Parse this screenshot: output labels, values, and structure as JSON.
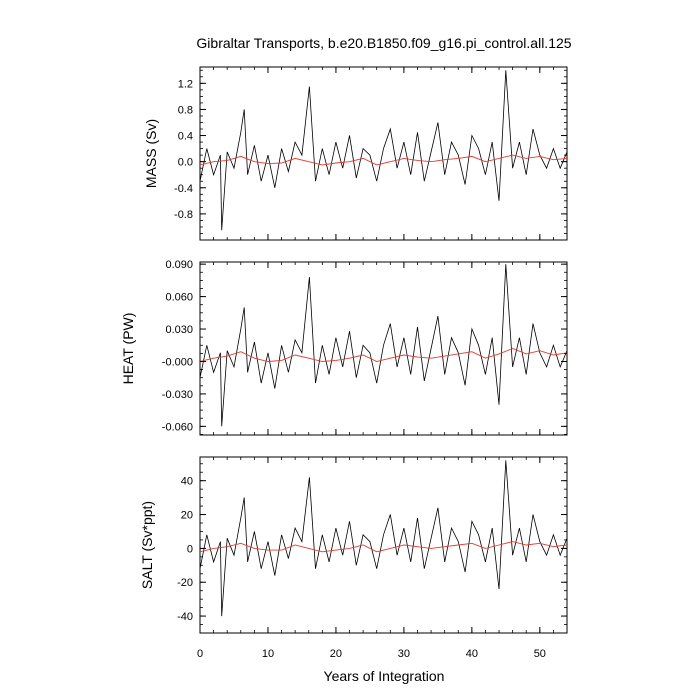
{
  "title": "Gibraltar Transports, b.e20.B1850.f09_g16.pi_control.all.125",
  "xlabel": "Years of Integration",
  "chart_data": [
    {
      "type": "line",
      "ylabel": "MASS (Sv)",
      "xlim": [
        0,
        54
      ],
      "ylim": [
        -1.2,
        1.45
      ],
      "xticks": [
        0,
        10,
        20,
        30,
        40,
        50
      ],
      "yticks": [
        1.2,
        0.8,
        0.4,
        0.0,
        -0.4,
        -0.8
      ],
      "ytick_labels": [
        "1.2",
        "0.8",
        "0.4",
        "0.0",
        "-0.4",
        "-0.8"
      ],
      "series": [
        {
          "role": "monthly",
          "color": "#000000",
          "x": [
            0.0,
            1.0,
            2.0,
            3.0,
            3.2,
            4.0,
            5.0,
            6.0,
            6.5,
            7.0,
            8.0,
            9.0,
            10.0,
            11.0,
            12.0,
            13.0,
            14.0,
            15.0,
            16.1,
            17.0,
            18.0,
            19.0,
            20.0,
            21.0,
            22.0,
            23.0,
            24.0,
            25.0,
            26.0,
            27.0,
            28.0,
            29.0,
            30.0,
            31.0,
            32.0,
            33.0,
            34.0,
            35.0,
            36.0,
            37.0,
            38.0,
            39.0,
            40.0,
            41.0,
            42.0,
            43.0,
            44.0,
            45.0,
            46.0,
            47.0,
            48.0,
            49.0,
            50.0,
            51.0,
            52.0,
            53.0,
            54.0
          ],
          "y": [
            -0.3,
            0.2,
            -0.2,
            0.1,
            -1.05,
            0.15,
            -0.1,
            0.45,
            0.8,
            -0.2,
            0.25,
            -0.3,
            0.1,
            -0.4,
            0.2,
            -0.15,
            0.3,
            0.1,
            1.15,
            -0.3,
            0.2,
            -0.2,
            0.3,
            -0.1,
            0.4,
            -0.25,
            0.2,
            0.1,
            -0.3,
            0.2,
            0.5,
            -0.1,
            0.3,
            -0.2,
            0.45,
            -0.3,
            0.15,
            0.6,
            -0.2,
            0.3,
            0.1,
            -0.35,
            0.4,
            0.2,
            -0.2,
            0.3,
            -0.6,
            1.4,
            -0.1,
            0.3,
            -0.2,
            0.5,
            0.1,
            -0.1,
            0.2,
            -0.1,
            0.15
          ]
        },
        {
          "role": "annual",
          "color": "#e8392e",
          "x": [
            0,
            2,
            4,
            6,
            8,
            10,
            12,
            14,
            16,
            18,
            20,
            22,
            24,
            26,
            28,
            30,
            32,
            34,
            36,
            38,
            40,
            42,
            44,
            46,
            48,
            50,
            52,
            54
          ],
          "y": [
            -0.05,
            0.0,
            0.02,
            0.08,
            0.0,
            -0.03,
            -0.02,
            0.05,
            0.0,
            -0.05,
            -0.02,
            0.0,
            0.05,
            -0.05,
            0.0,
            0.05,
            0.02,
            0.0,
            0.03,
            0.05,
            0.08,
            0.0,
            0.05,
            0.1,
            0.05,
            0.08,
            0.03,
            0.05
          ]
        }
      ]
    },
    {
      "type": "line",
      "ylabel": "HEAT (PW)",
      "xlim": [
        0,
        54
      ],
      "ylim": [
        -0.068,
        0.092
      ],
      "xticks": [
        0,
        10,
        20,
        30,
        40,
        50
      ],
      "yticks": [
        0.09,
        0.06,
        0.03,
        0.0,
        -0.03,
        -0.06
      ],
      "ytick_labels": [
        "0.090",
        "0.060",
        "0.030",
        "-0.000",
        "-0.030",
        "-0.060"
      ],
      "series": [
        {
          "role": "monthly",
          "color": "#000000",
          "x": [
            0.0,
            1.0,
            2.0,
            3.0,
            3.2,
            4.0,
            5.0,
            6.0,
            6.5,
            7.0,
            8.0,
            9.0,
            10.0,
            11.0,
            12.0,
            13.0,
            14.0,
            15.0,
            16.1,
            17.0,
            18.0,
            19.0,
            20.0,
            21.0,
            22.0,
            23.0,
            24.0,
            25.0,
            26.0,
            27.0,
            28.0,
            29.0,
            30.0,
            31.0,
            32.0,
            33.0,
            34.0,
            35.0,
            36.0,
            37.0,
            38.0,
            39.0,
            40.0,
            41.0,
            42.0,
            43.0,
            44.0,
            45.0,
            46.0,
            47.0,
            48.0,
            49.0,
            50.0,
            51.0,
            52.0,
            53.0,
            54.0
          ],
          "y": [
            -0.015,
            0.015,
            -0.01,
            0.008,
            -0.06,
            0.01,
            -0.005,
            0.03,
            0.05,
            -0.01,
            0.018,
            -0.02,
            0.008,
            -0.025,
            0.015,
            -0.01,
            0.02,
            0.008,
            0.078,
            -0.02,
            0.015,
            -0.012,
            0.022,
            -0.005,
            0.028,
            -0.015,
            0.015,
            0.008,
            -0.02,
            0.015,
            0.035,
            -0.005,
            0.022,
            -0.012,
            0.032,
            -0.018,
            0.012,
            0.042,
            -0.012,
            0.022,
            0.008,
            -0.022,
            0.03,
            0.015,
            -0.012,
            0.022,
            -0.04,
            0.09,
            -0.005,
            0.022,
            -0.012,
            0.035,
            0.008,
            -0.005,
            0.015,
            -0.005,
            0.01
          ]
        },
        {
          "role": "annual",
          "color": "#e8392e",
          "x": [
            0,
            2,
            4,
            6,
            8,
            10,
            12,
            14,
            16,
            18,
            20,
            22,
            24,
            26,
            28,
            30,
            32,
            34,
            36,
            38,
            40,
            42,
            44,
            46,
            48,
            50,
            52,
            54
          ],
          "y": [
            0.0,
            0.003,
            0.005,
            0.009,
            0.003,
            0.0,
            0.001,
            0.006,
            0.003,
            0.0,
            0.001,
            0.003,
            0.006,
            0.0,
            0.003,
            0.006,
            0.004,
            0.003,
            0.005,
            0.007,
            0.009,
            0.003,
            0.007,
            0.012,
            0.007,
            0.01,
            0.006,
            0.008
          ]
        }
      ]
    },
    {
      "type": "line",
      "ylabel": "SALT (Sv*ppt)",
      "xlim": [
        0,
        54
      ],
      "ylim": [
        -50,
        54
      ],
      "xticks": [
        0,
        10,
        20,
        30,
        40,
        50
      ],
      "yticks": [
        40,
        20,
        0,
        -20,
        -40
      ],
      "ytick_labels": [
        "40",
        "20",
        "0",
        "-20",
        "-40"
      ],
      "series": [
        {
          "role": "monthly",
          "color": "#000000",
          "x": [
            0.0,
            1.0,
            2.0,
            3.0,
            3.2,
            4.0,
            5.0,
            6.0,
            6.5,
            7.0,
            8.0,
            9.0,
            10.0,
            11.0,
            12.0,
            13.0,
            14.0,
            15.0,
            16.1,
            17.0,
            18.0,
            19.0,
            20.0,
            21.0,
            22.0,
            23.0,
            24.0,
            25.0,
            26.0,
            27.0,
            28.0,
            29.0,
            30.0,
            31.0,
            32.0,
            33.0,
            34.0,
            35.0,
            36.0,
            37.0,
            38.0,
            39.0,
            40.0,
            41.0,
            42.0,
            43.0,
            44.0,
            45.0,
            46.0,
            47.0,
            48.0,
            49.0,
            50.0,
            51.0,
            52.0,
            53.0,
            54.0
          ],
          "y": [
            -12,
            8,
            -8,
            4,
            -40,
            6,
            -4,
            18,
            30,
            -8,
            10,
            -12,
            4,
            -16,
            8,
            -6,
            12,
            4,
            42,
            -12,
            8,
            -8,
            12,
            -4,
            16,
            -10,
            8,
            4,
            -12,
            8,
            20,
            -4,
            12,
            -8,
            18,
            -12,
            6,
            24,
            -8,
            12,
            4,
            -14,
            16,
            8,
            -8,
            12,
            -24,
            52,
            -4,
            12,
            -8,
            20,
            4,
            -4,
            8,
            -4,
            6
          ]
        },
        {
          "role": "annual",
          "color": "#e8392e",
          "x": [
            0,
            2,
            4,
            6,
            8,
            10,
            12,
            14,
            16,
            18,
            20,
            22,
            24,
            26,
            28,
            30,
            32,
            34,
            36,
            38,
            40,
            42,
            44,
            46,
            48,
            50,
            52,
            54
          ],
          "y": [
            -2,
            0,
            1,
            3,
            0,
            -1,
            -1,
            2,
            0,
            -2,
            -1,
            0,
            2,
            -2,
            0,
            2,
            1,
            0,
            1,
            2,
            3,
            0,
            2,
            4,
            2,
            3,
            1,
            2
          ]
        }
      ]
    }
  ]
}
